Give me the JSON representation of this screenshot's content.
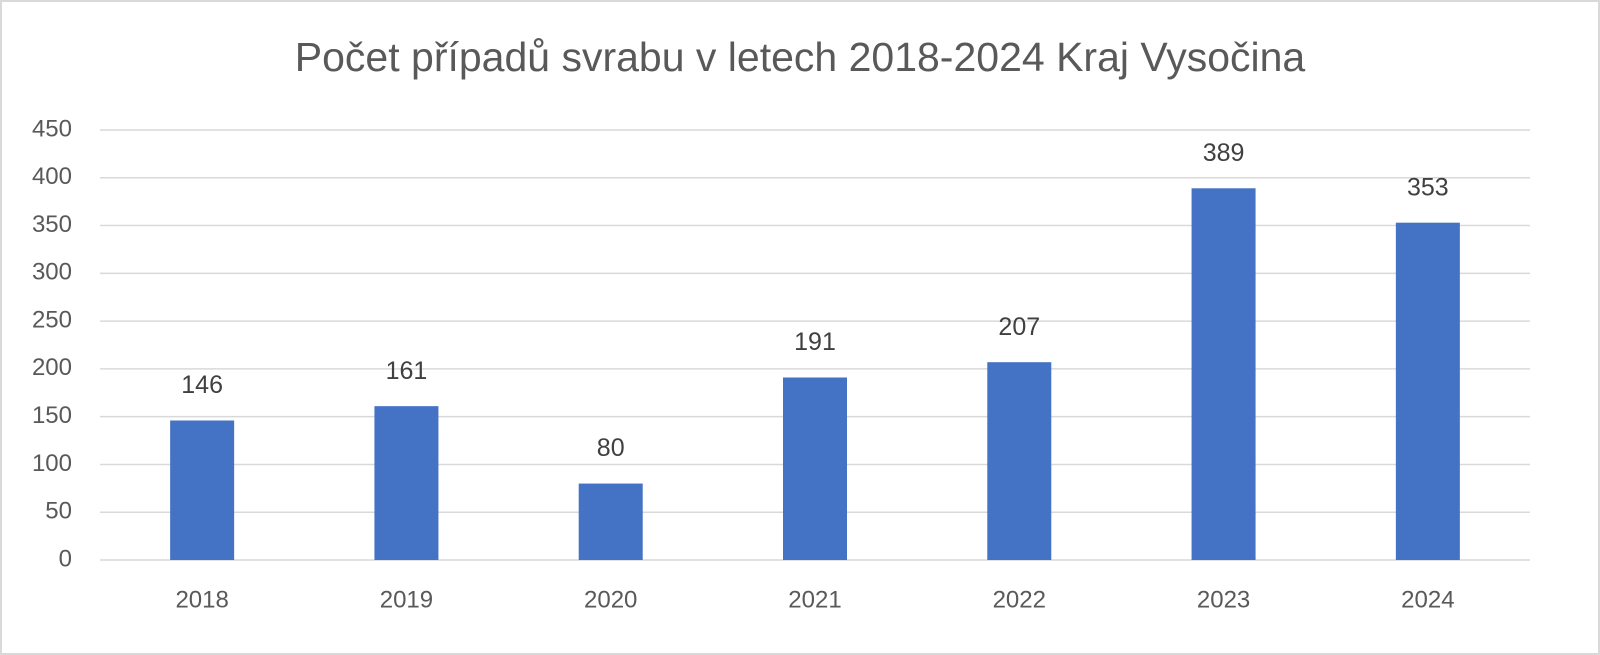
{
  "chart_data": {
    "type": "bar",
    "title": "Počet případů svrabu v letech 2018-2024 Kraj Vysočina",
    "categories": [
      "2018",
      "2019",
      "2020",
      "2021",
      "2022",
      "2023",
      "2024"
    ],
    "values": [
      146,
      161,
      80,
      191,
      207,
      389,
      353
    ],
    "color": "#4472c4",
    "ylim": [
      0,
      450
    ],
    "yticks": [
      0,
      50,
      100,
      150,
      200,
      250,
      300,
      350,
      400,
      450
    ],
    "grid": true
  }
}
